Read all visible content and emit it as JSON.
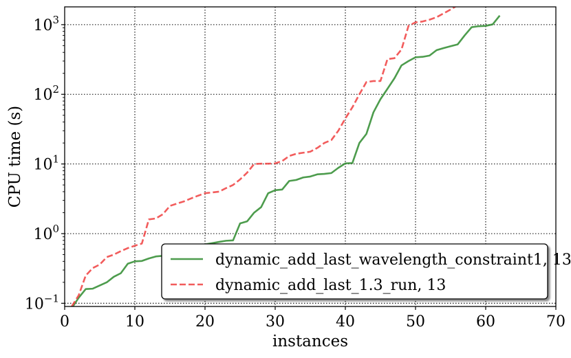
{
  "chart_data": {
    "type": "line",
    "xlabel": "instances",
    "ylabel": "CPU time (s)",
    "xlim": [
      0,
      70
    ],
    "ylim": [
      0.09,
      1800
    ],
    "yscale": "log",
    "grid": true,
    "legend_placement": "lower-right",
    "xticks": [
      {
        "value": 0,
        "label": "0"
      },
      {
        "value": 10,
        "label": "10"
      },
      {
        "value": 20,
        "label": "20"
      },
      {
        "value": 30,
        "label": "30"
      },
      {
        "value": 40,
        "label": "40"
      },
      {
        "value": 50,
        "label": "50"
      },
      {
        "value": 60,
        "label": "60"
      },
      {
        "value": 70,
        "label": "70"
      }
    ],
    "yticks": [
      {
        "value": 0.1,
        "base": "10",
        "exp": "−1"
      },
      {
        "value": 1,
        "base": "10",
        "exp": "0"
      },
      {
        "value": 10,
        "base": "10",
        "exp": "1"
      },
      {
        "value": 100,
        "base": "10",
        "exp": "2"
      },
      {
        "value": 1000,
        "base": "10",
        "exp": "3"
      }
    ],
    "series": [
      {
        "name": "dynamic_add_last_wavelength_constraint1, 13",
        "color": "#2e8b2e",
        "dash": "solid",
        "points": [
          [
            1,
            0.085
          ],
          [
            2,
            0.12
          ],
          [
            3,
            0.16
          ],
          [
            4,
            0.162
          ],
          [
            5,
            0.18
          ],
          [
            6,
            0.2
          ],
          [
            7,
            0.24
          ],
          [
            8,
            0.27
          ],
          [
            9,
            0.37
          ],
          [
            10,
            0.4
          ],
          [
            11,
            0.405
          ],
          [
            12,
            0.44
          ],
          [
            13,
            0.47
          ],
          [
            14,
            0.48
          ],
          [
            15,
            0.52
          ],
          [
            16,
            0.56
          ],
          [
            17,
            0.6
          ],
          [
            18,
            0.63
          ],
          [
            19,
            0.66
          ],
          [
            20,
            0.7
          ],
          [
            21,
            0.73
          ],
          [
            22,
            0.76
          ],
          [
            23,
            0.79
          ],
          [
            24,
            0.8
          ],
          [
            25,
            1.4
          ],
          [
            26,
            1.5
          ],
          [
            27,
            2.0
          ],
          [
            28,
            2.4
          ],
          [
            29,
            3.8
          ],
          [
            30,
            4.2
          ],
          [
            31,
            4.3
          ],
          [
            32,
            5.7
          ],
          [
            33,
            5.9
          ],
          [
            34,
            6.4
          ],
          [
            35,
            6.6
          ],
          [
            36,
            7.1
          ],
          [
            37,
            7.2
          ],
          [
            38,
            7.4
          ],
          [
            39,
            8.8
          ],
          [
            40,
            10.2
          ],
          [
            41,
            10.3
          ],
          [
            42,
            20
          ],
          [
            43,
            27
          ],
          [
            44,
            55
          ],
          [
            45,
            85
          ],
          [
            46,
            120
          ],
          [
            47,
            170
          ],
          [
            48,
            260
          ],
          [
            49,
            300
          ],
          [
            50,
            340
          ],
          [
            51,
            345
          ],
          [
            52,
            360
          ],
          [
            53,
            430
          ],
          [
            54,
            460
          ],
          [
            55,
            490
          ],
          [
            56,
            520
          ],
          [
            57,
            700
          ],
          [
            58,
            920
          ],
          [
            59,
            950
          ],
          [
            60,
            960
          ],
          [
            61,
            1010
          ],
          [
            62,
            1350
          ]
        ]
      },
      {
        "name": "dynamic_add_last_1.3_run, 13",
        "color": "#f04040",
        "dash": "dashed",
        "points": [
          [
            1,
            0.09
          ],
          [
            2,
            0.13
          ],
          [
            3,
            0.25
          ],
          [
            4,
            0.32
          ],
          [
            5,
            0.36
          ],
          [
            6,
            0.46
          ],
          [
            7,
            0.5
          ],
          [
            8,
            0.56
          ],
          [
            9,
            0.62
          ],
          [
            10,
            0.67
          ],
          [
            11,
            0.72
          ],
          [
            12,
            1.6
          ],
          [
            13,
            1.65
          ],
          [
            14,
            1.9
          ],
          [
            15,
            2.5
          ],
          [
            16,
            2.7
          ],
          [
            17,
            2.9
          ],
          [
            18,
            3.2
          ],
          [
            19,
            3.5
          ],
          [
            20,
            3.8
          ],
          [
            21,
            3.9
          ],
          [
            22,
            4.0
          ],
          [
            23,
            4.5
          ],
          [
            24,
            5.0
          ],
          [
            25,
            6.0
          ],
          [
            26,
            7.5
          ],
          [
            27,
            10.0
          ],
          [
            28,
            10.1
          ],
          [
            29,
            10.1
          ],
          [
            30,
            10.2
          ],
          [
            31,
            11.0
          ],
          [
            32,
            13.0
          ],
          [
            33,
            14.0
          ],
          [
            34,
            14.5
          ],
          [
            35,
            15.0
          ],
          [
            36,
            17.0
          ],
          [
            37,
            20.0
          ],
          [
            38,
            22.0
          ],
          [
            39,
            30.0
          ],
          [
            40,
            45.0
          ],
          [
            41,
            65.0
          ],
          [
            42,
            100.0
          ],
          [
            43,
            150.0
          ],
          [
            44,
            155.0
          ],
          [
            45,
            155.0
          ],
          [
            46,
            320.0
          ],
          [
            47,
            330.0
          ],
          [
            48,
            440.0
          ],
          [
            49,
            960.0
          ],
          [
            50,
            1080.0
          ],
          [
            51,
            1110.0
          ],
          [
            52,
            1180.0
          ],
          [
            53,
            1280.0
          ],
          [
            54,
            1450.0
          ],
          [
            55,
            1650.0
          ],
          [
            56,
            1900.0
          ]
        ]
      }
    ]
  }
}
